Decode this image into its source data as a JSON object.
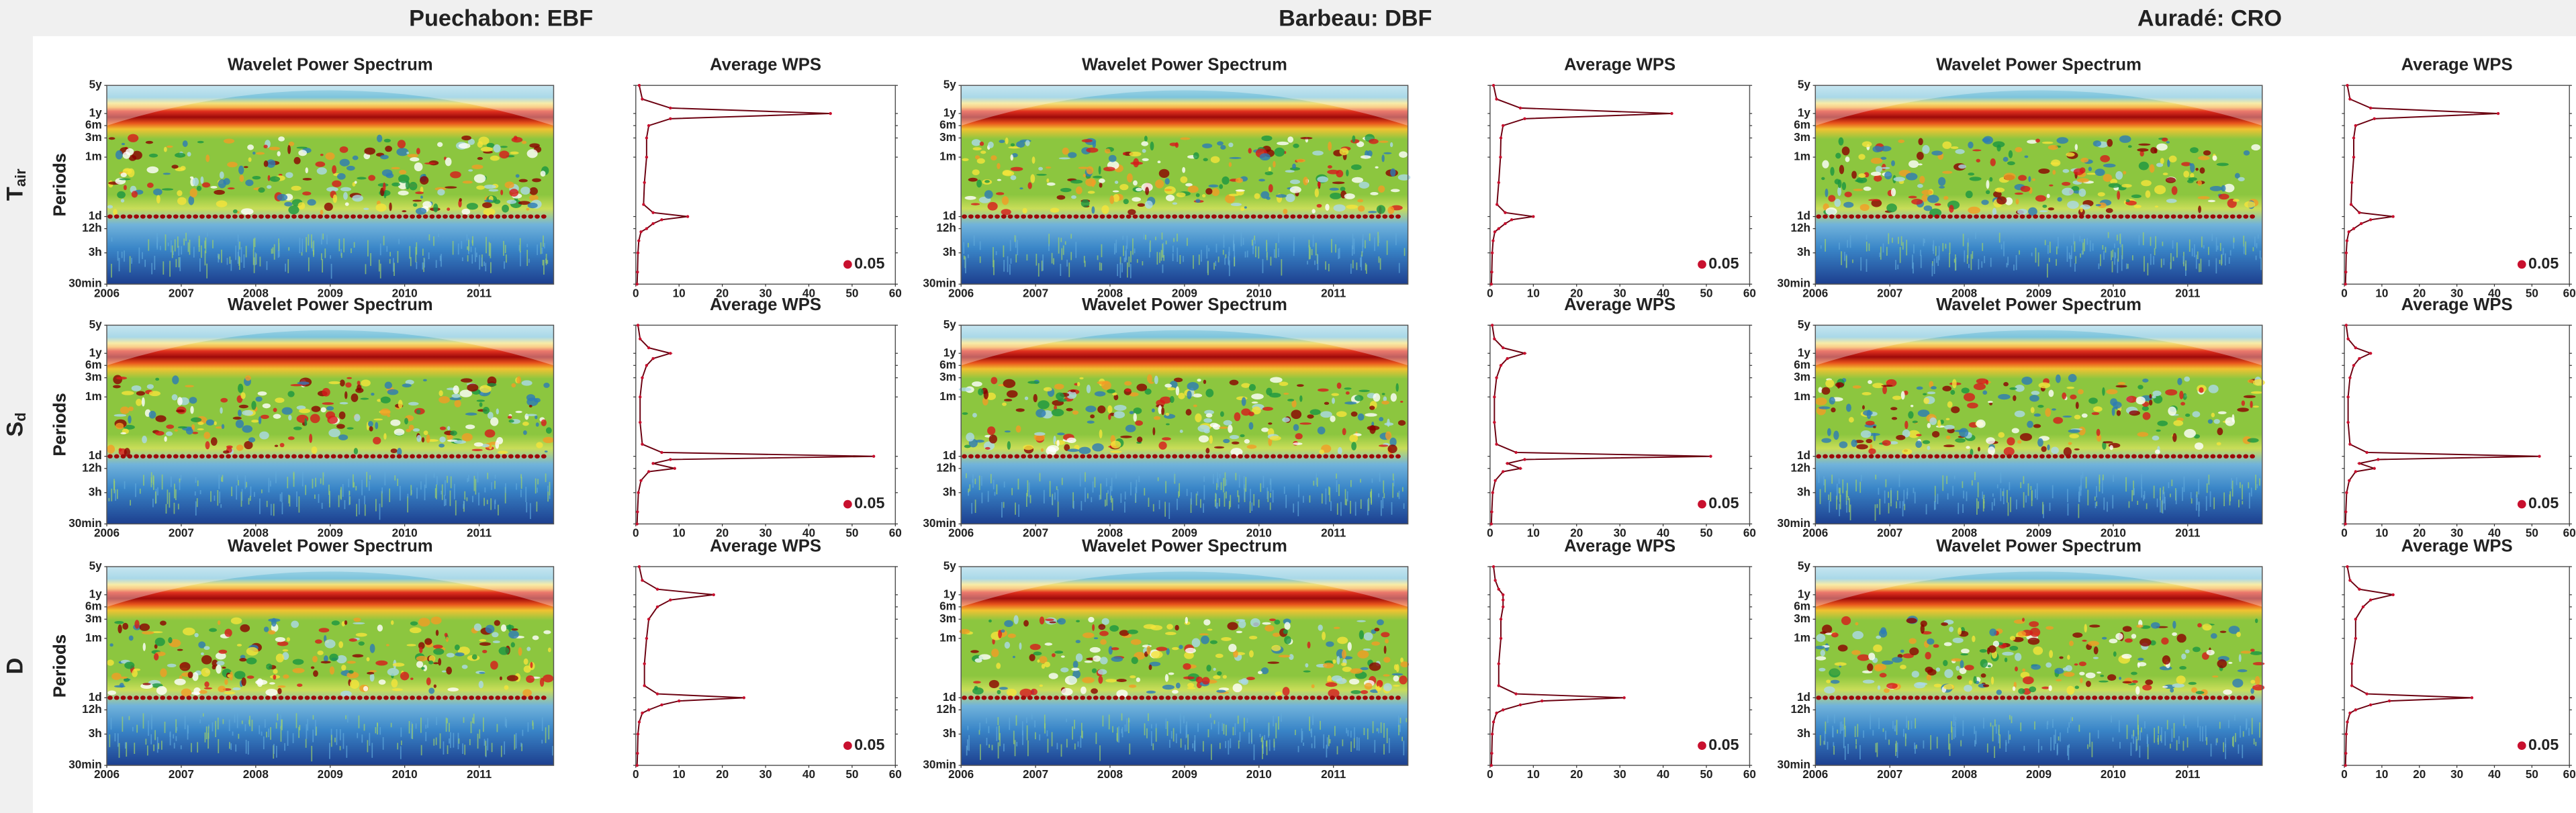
{
  "sites": [
    "Puechabon: EBF",
    "Barbeau: DBF",
    "Auradé: CRO"
  ],
  "variables": [
    {
      "symbol": "T",
      "subscript": "air"
    },
    {
      "symbol": "S",
      "subscript": "d"
    },
    {
      "symbol": "D"
    }
  ],
  "chart_data": [
    {
      "type": "heatmap",
      "title": "Wavelet Power Spectrum",
      "ylabel": "Periods",
      "log_y": true,
      "ylim": [
        0.5,
        43800
      ],
      "yticks": [
        {
          "value": 0.5,
          "label": "30min"
        },
        {
          "value": 3,
          "label": "3h"
        },
        {
          "value": 12,
          "label": "12h"
        },
        {
          "value": 24,
          "label": "1d"
        },
        {
          "value": 720,
          "label": "1m"
        },
        {
          "value": 2160,
          "label": "3m"
        },
        {
          "value": 4380,
          "label": "6m"
        },
        {
          "value": 8760,
          "label": "1y"
        },
        {
          "value": 43800,
          "label": "5y"
        }
      ],
      "xlim": [
        2006,
        2012
      ],
      "xticks": [
        2006,
        2007,
        2008,
        2009,
        2010,
        2011
      ]
    },
    {
      "type": "line",
      "title": "Average WPS",
      "color": "#c8102e",
      "log_y": true,
      "periods": [
        0.5,
        1,
        3,
        6,
        10,
        12,
        16,
        20,
        24,
        30,
        48,
        168,
        720,
        2160,
        4380,
        6500,
        8760,
        12000,
        20000,
        43800
      ],
      "values": [
        0.3,
        0.4,
        0.5,
        0.7,
        1.2,
        2.5,
        4,
        6,
        12,
        4,
        1.8,
        2,
        2.5,
        2.5,
        3,
        8,
        45,
        8,
        1.5,
        0.8
      ],
      "xlim": [
        0,
        60
      ],
      "xticks": [
        0,
        10,
        20,
        30,
        40,
        50,
        60
      ],
      "ylim": [
        0.5,
        43800
      ],
      "yticks": [
        0.5,
        3,
        12,
        24,
        720,
        2160,
        4380,
        8760,
        43800
      ],
      "legend_label": "0.05"
    },
    {
      "type": "heatmap",
      "title": "Wavelet Power Spectrum",
      "ylabel": "Periods",
      "log_y": true,
      "ylim": [
        0.5,
        43800
      ],
      "yticks": [
        {
          "value": 0.5,
          "label": "30min"
        },
        {
          "value": 3,
          "label": "3h"
        },
        {
          "value": 12,
          "label": "12h"
        },
        {
          "value": 24,
          "label": "1d"
        },
        {
          "value": 720,
          "label": "1m"
        },
        {
          "value": 2160,
          "label": "3m"
        },
        {
          "value": 4380,
          "label": "6m"
        },
        {
          "value": 8760,
          "label": "1y"
        },
        {
          "value": 43800,
          "label": "5y"
        }
      ],
      "xlim": [
        2006,
        2012
      ],
      "xticks": [
        2006,
        2007,
        2008,
        2009,
        2010,
        2011
      ]
    },
    {
      "type": "line",
      "title": "Average WPS",
      "color": "#c8102e",
      "log_y": true,
      "periods": [
        0.5,
        1,
        3,
        6,
        10,
        12,
        16,
        20,
        24,
        30,
        48,
        168,
        720,
        2160,
        4380,
        6500,
        8760,
        12000,
        20000,
        43800
      ],
      "values": [
        0.3,
        0.4,
        0.5,
        0.7,
        1.1,
        2,
        3.5,
        5,
        10,
        3.5,
        1.6,
        2,
        2.4,
        2.5,
        3,
        8,
        42,
        7,
        1.5,
        0.8
      ],
      "xlim": [
        0,
        60
      ],
      "xticks": [
        0,
        10,
        20,
        30,
        40,
        50,
        60
      ],
      "ylim": [
        0.5,
        43800
      ],
      "yticks": [
        0.5,
        3,
        12,
        24,
        720,
        2160,
        4380,
        8760,
        43800
      ],
      "legend_label": "0.05"
    },
    {
      "type": "heatmap",
      "title": "Wavelet Power Spectrum",
      "ylabel": "Periods",
      "log_y": true,
      "ylim": [
        0.5,
        43800
      ],
      "yticks": [
        {
          "value": 0.5,
          "label": "30min"
        },
        {
          "value": 3,
          "label": "3h"
        },
        {
          "value": 12,
          "label": "12h"
        },
        {
          "value": 24,
          "label": "1d"
        },
        {
          "value": 720,
          "label": "1m"
        },
        {
          "value": 2160,
          "label": "3m"
        },
        {
          "value": 4380,
          "label": "6m"
        },
        {
          "value": 8760,
          "label": "1y"
        },
        {
          "value": 43800,
          "label": "5y"
        }
      ],
      "xlim": [
        2006,
        2012
      ],
      "xticks": [
        2006,
        2007,
        2008,
        2009,
        2010,
        2011
      ]
    },
    {
      "type": "line",
      "title": "Average WPS",
      "color": "#c8102e",
      "log_y": true,
      "periods": [
        0.5,
        1,
        3,
        6,
        10,
        12,
        16,
        20,
        24,
        30,
        48,
        168,
        720,
        2160,
        4380,
        6500,
        8760,
        12000,
        20000,
        43800
      ],
      "values": [
        0.3,
        0.4,
        0.5,
        0.7,
        1.2,
        2.5,
        4.5,
        7,
        13,
        4,
        1.8,
        2,
        2.5,
        2.5,
        3,
        8,
        41,
        7,
        1.5,
        0.8
      ],
      "xlim": [
        0,
        60
      ],
      "xticks": [
        0,
        10,
        20,
        30,
        40,
        50,
        60
      ],
      "ylim": [
        0.5,
        43800
      ],
      "yticks": [
        0.5,
        3,
        12,
        24,
        720,
        2160,
        4380,
        8760,
        43800
      ],
      "legend_label": "0.05"
    },
    {
      "type": "heatmap",
      "title": "Wavelet Power Spectrum",
      "ylabel": "Periods",
      "log_y": true,
      "ylim": [
        0.5,
        43800
      ],
      "yticks": [
        {
          "value": 0.5,
          "label": "30min"
        },
        {
          "value": 3,
          "label": "3h"
        },
        {
          "value": 12,
          "label": "12h"
        },
        {
          "value": 24,
          "label": "1d"
        },
        {
          "value": 720,
          "label": "1m"
        },
        {
          "value": 2160,
          "label": "3m"
        },
        {
          "value": 4380,
          "label": "6m"
        },
        {
          "value": 8760,
          "label": "1y"
        },
        {
          "value": 43800,
          "label": "5y"
        }
      ],
      "xlim": [
        2006,
        2012
      ],
      "xticks": [
        2006,
        2007,
        2008,
        2009,
        2010,
        2011
      ]
    },
    {
      "type": "line",
      "title": "Average WPS",
      "color": "#c8102e",
      "log_y": true,
      "periods": [
        0.5,
        1,
        3,
        6,
        10,
        12,
        16,
        20,
        24,
        30,
        48,
        168,
        720,
        2160,
        4380,
        6500,
        8760,
        12000,
        20000,
        43800
      ],
      "values": [
        0.3,
        0.4,
        0.6,
        1.2,
        3,
        9,
        4,
        8,
        55,
        6,
        1.5,
        1,
        1,
        1.5,
        2.5,
        4,
        8,
        3,
        1,
        0.5
      ],
      "xlim": [
        0,
        60
      ],
      "xticks": [
        0,
        10,
        20,
        30,
        40,
        50,
        60
      ],
      "ylim": [
        0.5,
        43800
      ],
      "yticks": [
        0.5,
        3,
        12,
        24,
        720,
        2160,
        4380,
        8760,
        43800
      ],
      "legend_label": "0.05"
    },
    {
      "type": "heatmap",
      "title": "Wavelet Power Spectrum",
      "ylabel": "Periods",
      "log_y": true,
      "ylim": [
        0.5,
        43800
      ],
      "yticks": [
        {
          "value": 0.5,
          "label": "30min"
        },
        {
          "value": 3,
          "label": "3h"
        },
        {
          "value": 12,
          "label": "12h"
        },
        {
          "value": 24,
          "label": "1d"
        },
        {
          "value": 720,
          "label": "1m"
        },
        {
          "value": 2160,
          "label": "3m"
        },
        {
          "value": 4380,
          "label": "6m"
        },
        {
          "value": 8760,
          "label": "1y"
        },
        {
          "value": 43800,
          "label": "5y"
        }
      ],
      "xlim": [
        2006,
        2012
      ],
      "xticks": [
        2006,
        2007,
        2008,
        2009,
        2010,
        2011
      ]
    },
    {
      "type": "line",
      "title": "Average WPS",
      "color": "#c8102e",
      "log_y": true,
      "periods": [
        0.5,
        1,
        3,
        6,
        10,
        12,
        16,
        20,
        24,
        30,
        48,
        168,
        720,
        2160,
        4380,
        6500,
        8760,
        12000,
        20000,
        43800
      ],
      "values": [
        0.3,
        0.4,
        0.6,
        1.2,
        3,
        7,
        4,
        8,
        51,
        6,
        1.5,
        1,
        1,
        1.5,
        2.5,
        4,
        8,
        3,
        1,
        0.5
      ],
      "xlim": [
        0,
        60
      ],
      "xticks": [
        0,
        10,
        20,
        30,
        40,
        50,
        60
      ],
      "ylim": [
        0.5,
        43800
      ],
      "yticks": [
        0.5,
        3,
        12,
        24,
        720,
        2160,
        4380,
        8760,
        43800
      ],
      "legend_label": "0.05"
    },
    {
      "type": "heatmap",
      "title": "Wavelet Power Spectrum",
      "ylabel": "Periods",
      "log_y": true,
      "ylim": [
        0.5,
        43800
      ],
      "yticks": [
        {
          "value": 0.5,
          "label": "30min"
        },
        {
          "value": 3,
          "label": "3h"
        },
        {
          "value": 12,
          "label": "12h"
        },
        {
          "value": 24,
          "label": "1d"
        },
        {
          "value": 720,
          "label": "1m"
        },
        {
          "value": 2160,
          "label": "3m"
        },
        {
          "value": 4380,
          "label": "6m"
        },
        {
          "value": 8760,
          "label": "1y"
        },
        {
          "value": 43800,
          "label": "5y"
        }
      ],
      "xlim": [
        2006,
        2012
      ],
      "xticks": [
        2006,
        2007,
        2008,
        2009,
        2010,
        2011
      ]
    },
    {
      "type": "line",
      "title": "Average WPS",
      "color": "#c8102e",
      "log_y": true,
      "periods": [
        0.5,
        1,
        3,
        6,
        10,
        12,
        16,
        20,
        24,
        30,
        48,
        168,
        720,
        2160,
        4380,
        6500,
        8760,
        12000,
        20000,
        43800
      ],
      "values": [
        0.3,
        0.4,
        0.6,
        1.3,
        3,
        8,
        4,
        9,
        52,
        6,
        1.5,
        1,
        1,
        1.5,
        2.5,
        4,
        7,
        3,
        1,
        0.5
      ],
      "xlim": [
        0,
        60
      ],
      "xticks": [
        0,
        10,
        20,
        30,
        40,
        50,
        60
      ],
      "ylim": [
        0.5,
        43800
      ],
      "yticks": [
        0.5,
        3,
        12,
        24,
        720,
        2160,
        4380,
        8760,
        43800
      ],
      "legend_label": "0.05"
    },
    {
      "type": "heatmap",
      "title": "Wavelet Power Spectrum",
      "ylabel": "Periods",
      "log_y": true,
      "ylim": [
        0.5,
        43800
      ],
      "yticks": [
        {
          "value": 0.5,
          "label": "30min"
        },
        {
          "value": 3,
          "label": "3h"
        },
        {
          "value": 12,
          "label": "12h"
        },
        {
          "value": 24,
          "label": "1d"
        },
        {
          "value": 720,
          "label": "1m"
        },
        {
          "value": 2160,
          "label": "3m"
        },
        {
          "value": 4380,
          "label": "6m"
        },
        {
          "value": 8760,
          "label": "1y"
        },
        {
          "value": 43800,
          "label": "5y"
        }
      ],
      "xlim": [
        2006,
        2012
      ],
      "xticks": [
        2006,
        2007,
        2008,
        2009,
        2010,
        2011
      ]
    },
    {
      "type": "line",
      "title": "Average WPS",
      "color": "#c8102e",
      "log_y": true,
      "periods": [
        0.5,
        1,
        3,
        6,
        10,
        12,
        16,
        20,
        24,
        30,
        48,
        168,
        720,
        2160,
        4380,
        6500,
        8760,
        12000,
        20000,
        43800
      ],
      "values": [
        0.3,
        0.4,
        0.5,
        0.8,
        1.5,
        3,
        6,
        10,
        25,
        5,
        2,
        2,
        2.5,
        3,
        5,
        8,
        18,
        5,
        1.5,
        0.8
      ],
      "xlim": [
        0,
        60
      ],
      "xticks": [
        0,
        10,
        20,
        30,
        40,
        50,
        60
      ],
      "ylim": [
        0.5,
        43800
      ],
      "yticks": [
        0.5,
        3,
        12,
        24,
        720,
        2160,
        4380,
        8760,
        43800
      ],
      "legend_label": "0.05"
    },
    {
      "type": "heatmap",
      "title": "Wavelet Power Spectrum",
      "ylabel": "Periods",
      "log_y": true,
      "ylim": [
        0.5,
        43800
      ],
      "yticks": [
        {
          "value": 0.5,
          "label": "30min"
        },
        {
          "value": 3,
          "label": "3h"
        },
        {
          "value": 12,
          "label": "12h"
        },
        {
          "value": 24,
          "label": "1d"
        },
        {
          "value": 720,
          "label": "1m"
        },
        {
          "value": 2160,
          "label": "3m"
        },
        {
          "value": 4380,
          "label": "6m"
        },
        {
          "value": 8760,
          "label": "1y"
        },
        {
          "value": 43800,
          "label": "5y"
        }
      ],
      "xlim": [
        2006,
        2012
      ],
      "xticks": [
        2006,
        2007,
        2008,
        2009,
        2010,
        2011
      ]
    },
    {
      "type": "line",
      "title": "Average WPS",
      "color": "#c8102e",
      "log_y": true,
      "periods": [
        0.5,
        1,
        3,
        6,
        10,
        12,
        16,
        20,
        24,
        30,
        48,
        168,
        720,
        2160,
        4380,
        6500,
        8760,
        12000,
        20000,
        43800
      ],
      "values": [
        0.3,
        0.4,
        0.5,
        0.8,
        1.5,
        3,
        7,
        12,
        31,
        6,
        2,
        2,
        2.5,
        2.5,
        3,
        3,
        3,
        2,
        1.2,
        0.8
      ],
      "xlim": [
        0,
        60
      ],
      "xticks": [
        0,
        10,
        20,
        30,
        40,
        50,
        60
      ],
      "ylim": [
        0.5,
        43800
      ],
      "yticks": [
        0.5,
        3,
        12,
        24,
        720,
        2160,
        4380,
        8760,
        43800
      ],
      "legend_label": "0.05"
    },
    {
      "type": "heatmap",
      "title": "Wavelet Power Spectrum",
      "ylabel": "Periods",
      "log_y": true,
      "ylim": [
        0.5,
        43800
      ],
      "yticks": [
        {
          "value": 0.5,
          "label": "30min"
        },
        {
          "value": 3,
          "label": "3h"
        },
        {
          "value": 12,
          "label": "12h"
        },
        {
          "value": 24,
          "label": "1d"
        },
        {
          "value": 720,
          "label": "1m"
        },
        {
          "value": 2160,
          "label": "3m"
        },
        {
          "value": 4380,
          "label": "6m"
        },
        {
          "value": 8760,
          "label": "1y"
        },
        {
          "value": 43800,
          "label": "5y"
        }
      ],
      "xlim": [
        2006,
        2012
      ],
      "xticks": [
        2006,
        2007,
        2008,
        2009,
        2010,
        2011
      ]
    },
    {
      "type": "line",
      "title": "Average WPS",
      "color": "#c8102e",
      "log_y": true,
      "periods": [
        0.5,
        1,
        3,
        6,
        10,
        12,
        16,
        20,
        24,
        30,
        48,
        168,
        720,
        2160,
        4380,
        6500,
        8760,
        12000,
        20000,
        43800
      ],
      "values": [
        0.3,
        0.4,
        0.5,
        0.8,
        1.5,
        3,
        7,
        12,
        34,
        6,
        2,
        2,
        3,
        3,
        5,
        7,
        13,
        4,
        1.5,
        0.8
      ],
      "xlim": [
        0,
        60
      ],
      "xticks": [
        0,
        10,
        20,
        30,
        40,
        50,
        60
      ],
      "ylim": [
        0.5,
        43800
      ],
      "yticks": [
        0.5,
        3,
        12,
        24,
        720,
        2160,
        4380,
        8760,
        43800
      ],
      "legend_label": "0.05"
    }
  ]
}
